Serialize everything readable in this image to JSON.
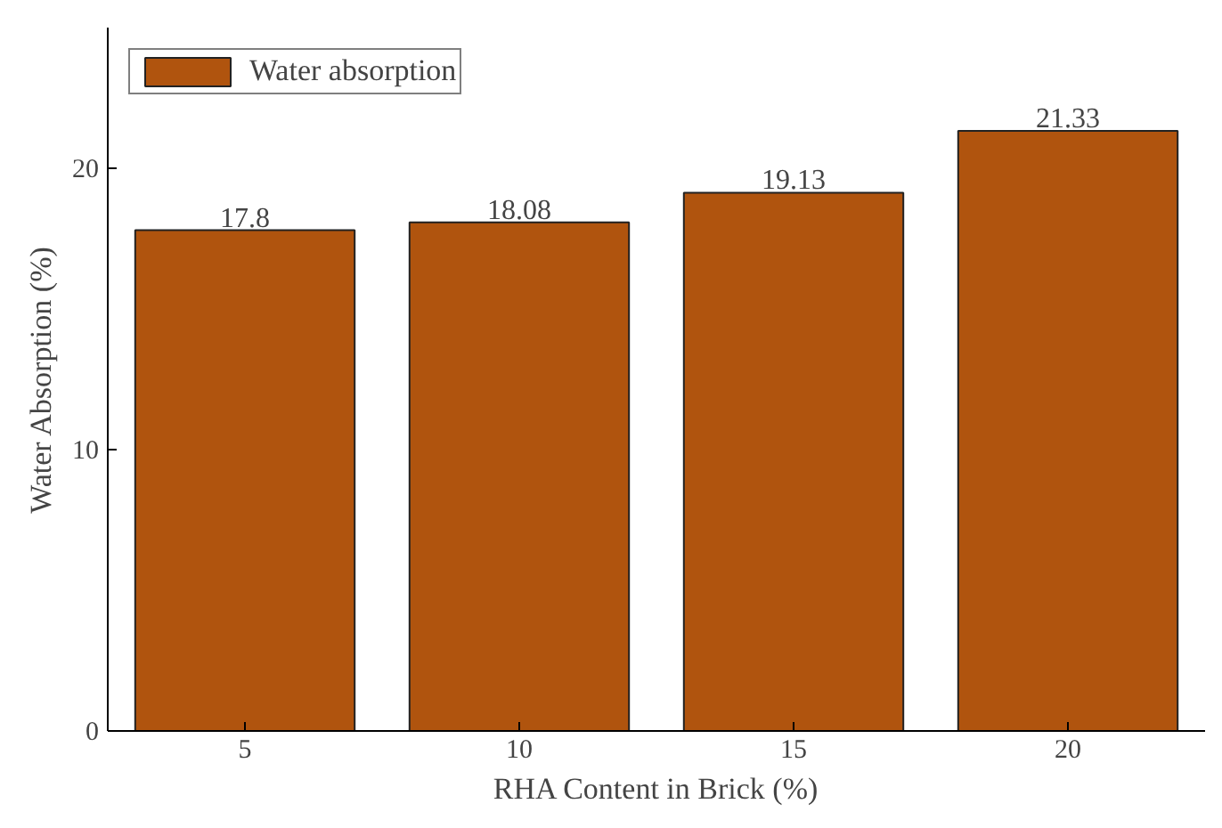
{
  "chart_data": {
    "type": "bar",
    "xlabel": "RHA Content in Brick (%)",
    "ylabel": "Water Absorption (%)",
    "categories": [
      "5",
      "10",
      "15",
      "20"
    ],
    "series": [
      {
        "name": "Water absorption",
        "color": "#b0540e",
        "values": [
          17.8,
          18.08,
          19.13,
          21.33
        ]
      }
    ],
    "ylim": [
      0,
      25
    ],
    "yticks": [
      0,
      10,
      20
    ],
    "grid": false,
    "legend": "top left",
    "data_labels": true
  }
}
